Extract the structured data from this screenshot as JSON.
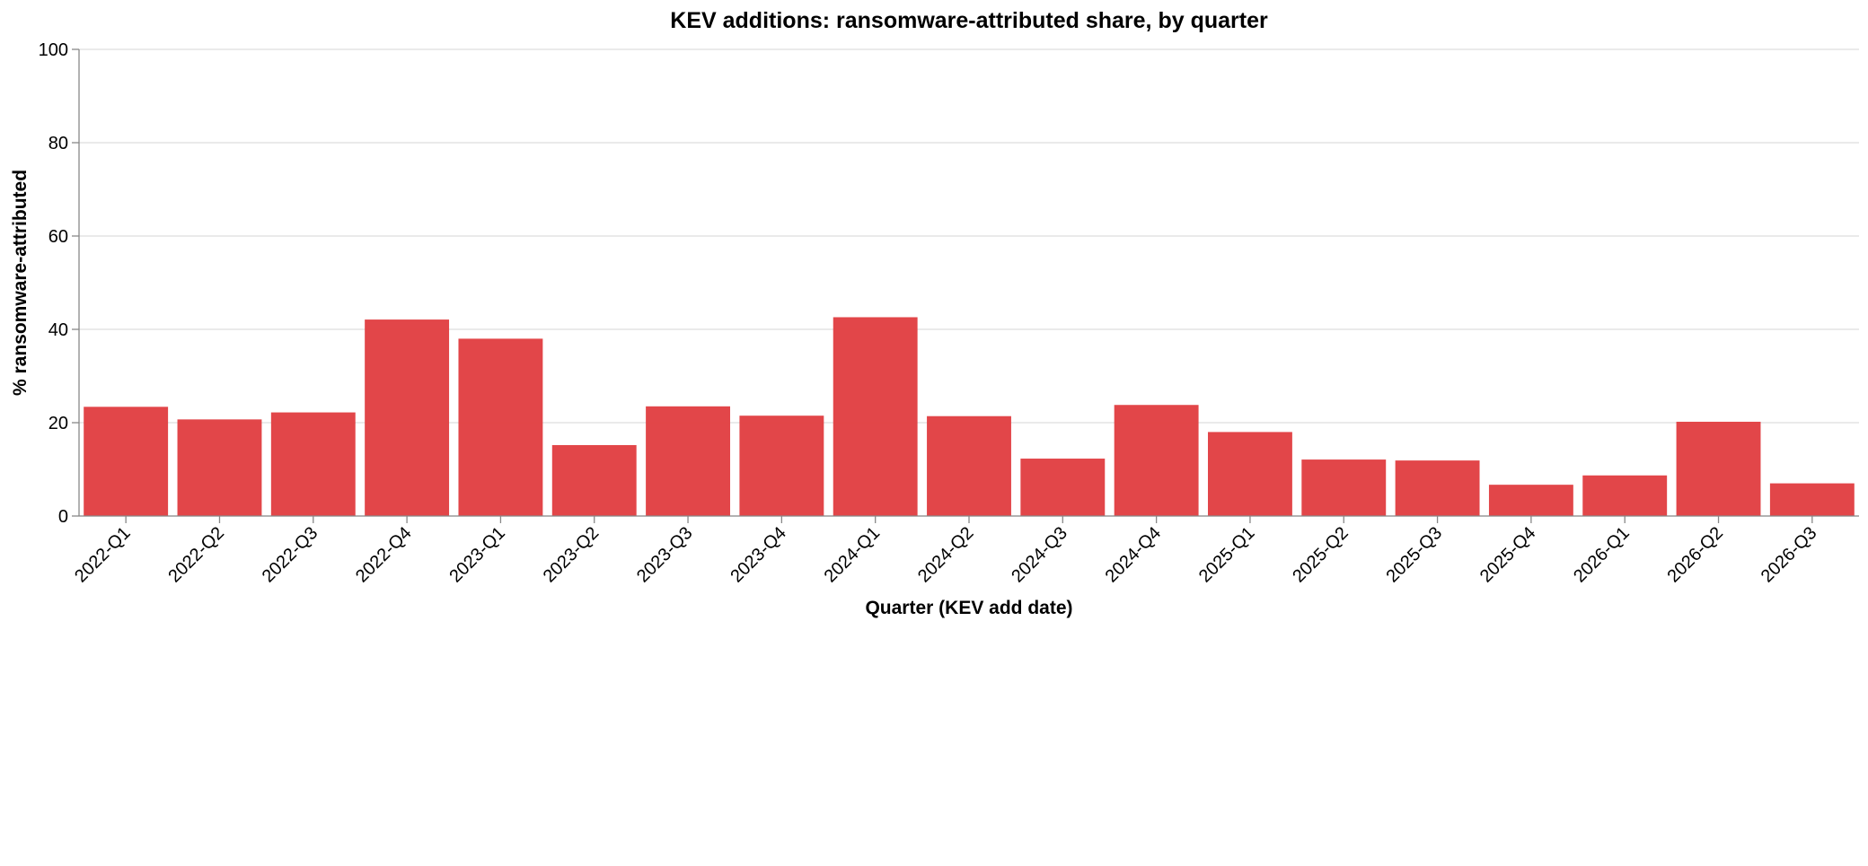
{
  "chart_data": {
    "type": "bar",
    "title": "KEV additions: ransomware-attributed share, by quarter",
    "xlabel": "Quarter (KEV add date)",
    "ylabel": "% ransomware-attributed",
    "ylim": [
      0,
      100
    ],
    "yticks": [
      0,
      20,
      40,
      60,
      80,
      100
    ],
    "grid": true,
    "bar_color": "#e03c3f",
    "categories": [
      "2022-Q1",
      "2022-Q2",
      "2022-Q3",
      "2022-Q4",
      "2023-Q1",
      "2023-Q2",
      "2023-Q3",
      "2023-Q4",
      "2024-Q1",
      "2024-Q2",
      "2024-Q3",
      "2024-Q4",
      "2025-Q1",
      "2025-Q2",
      "2025-Q3",
      "2025-Q4",
      "2026-Q1",
      "2026-Q2",
      "2026-Q3"
    ],
    "values": [
      23.4,
      20.7,
      22.2,
      42.1,
      38.0,
      15.2,
      23.5,
      21.5,
      42.6,
      21.4,
      12.3,
      23.8,
      18.0,
      12.1,
      11.9,
      6.7,
      8.7,
      20.2,
      7.0
    ]
  }
}
